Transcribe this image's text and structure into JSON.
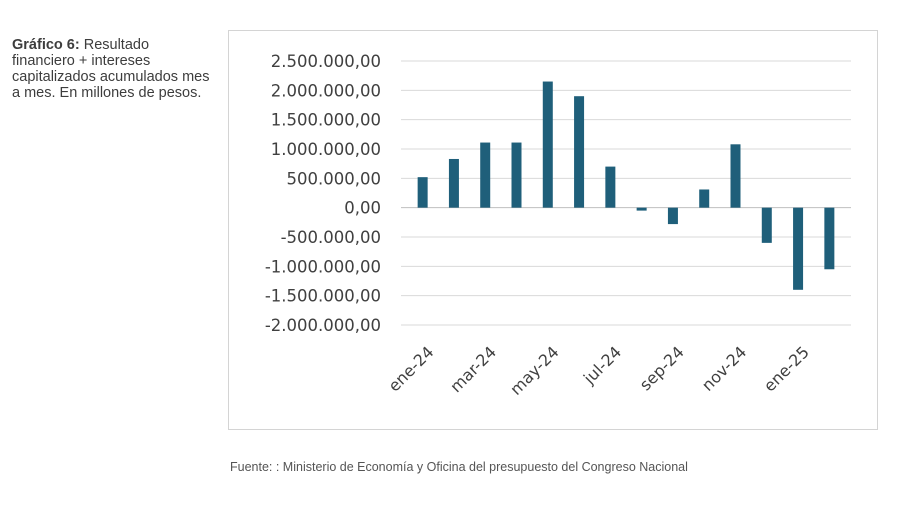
{
  "caption": {
    "label": "Gráfico 6:",
    "text": " Resultado financiero + intereses capitalizados acumulados mes a mes. En millones de pesos."
  },
  "source": "Fuente: : Ministerio de Economía y Oficina del presupuesto del Congreso Nacional",
  "colors": {
    "bar": "#1f5f7a",
    "grid": "#d9d9d9",
    "axis": "#bfbfbf"
  },
  "chart_data": {
    "type": "bar",
    "categories": [
      "ene-24",
      "feb-24",
      "mar-24",
      "abr-24",
      "may-24",
      "jun-24",
      "jul-24",
      "ago-24",
      "sep-24",
      "oct-24",
      "nov-24",
      "dic-24",
      "ene-25",
      "feb-25"
    ],
    "x_tick_labels": [
      "ene-24",
      "mar-24",
      "may-24",
      "jul-24",
      "sep-24",
      "nov-24",
      "ene-25"
    ],
    "values": [
      520000,
      830000,
      1110000,
      1110000,
      2150000,
      1900000,
      700000,
      -50000,
      -280000,
      310000,
      1080000,
      -600000,
      -1400000,
      -1050000
    ],
    "ylim": [
      -2000000,
      2500000
    ],
    "y_ticks": [
      2500000,
      2000000,
      1500000,
      1000000,
      500000,
      0,
      -500000,
      -1000000,
      -1500000,
      -2000000
    ],
    "y_tick_labels": [
      "2.500.000,00",
      "2.000.000,00",
      "1.500.000,00",
      "1.000.000,00",
      "500.000,00",
      "0,00",
      "-500.000,00",
      "-1.000.000,00",
      "-1.500.000,00",
      "-2.000.000,00"
    ],
    "grid": true,
    "legend": "none"
  }
}
